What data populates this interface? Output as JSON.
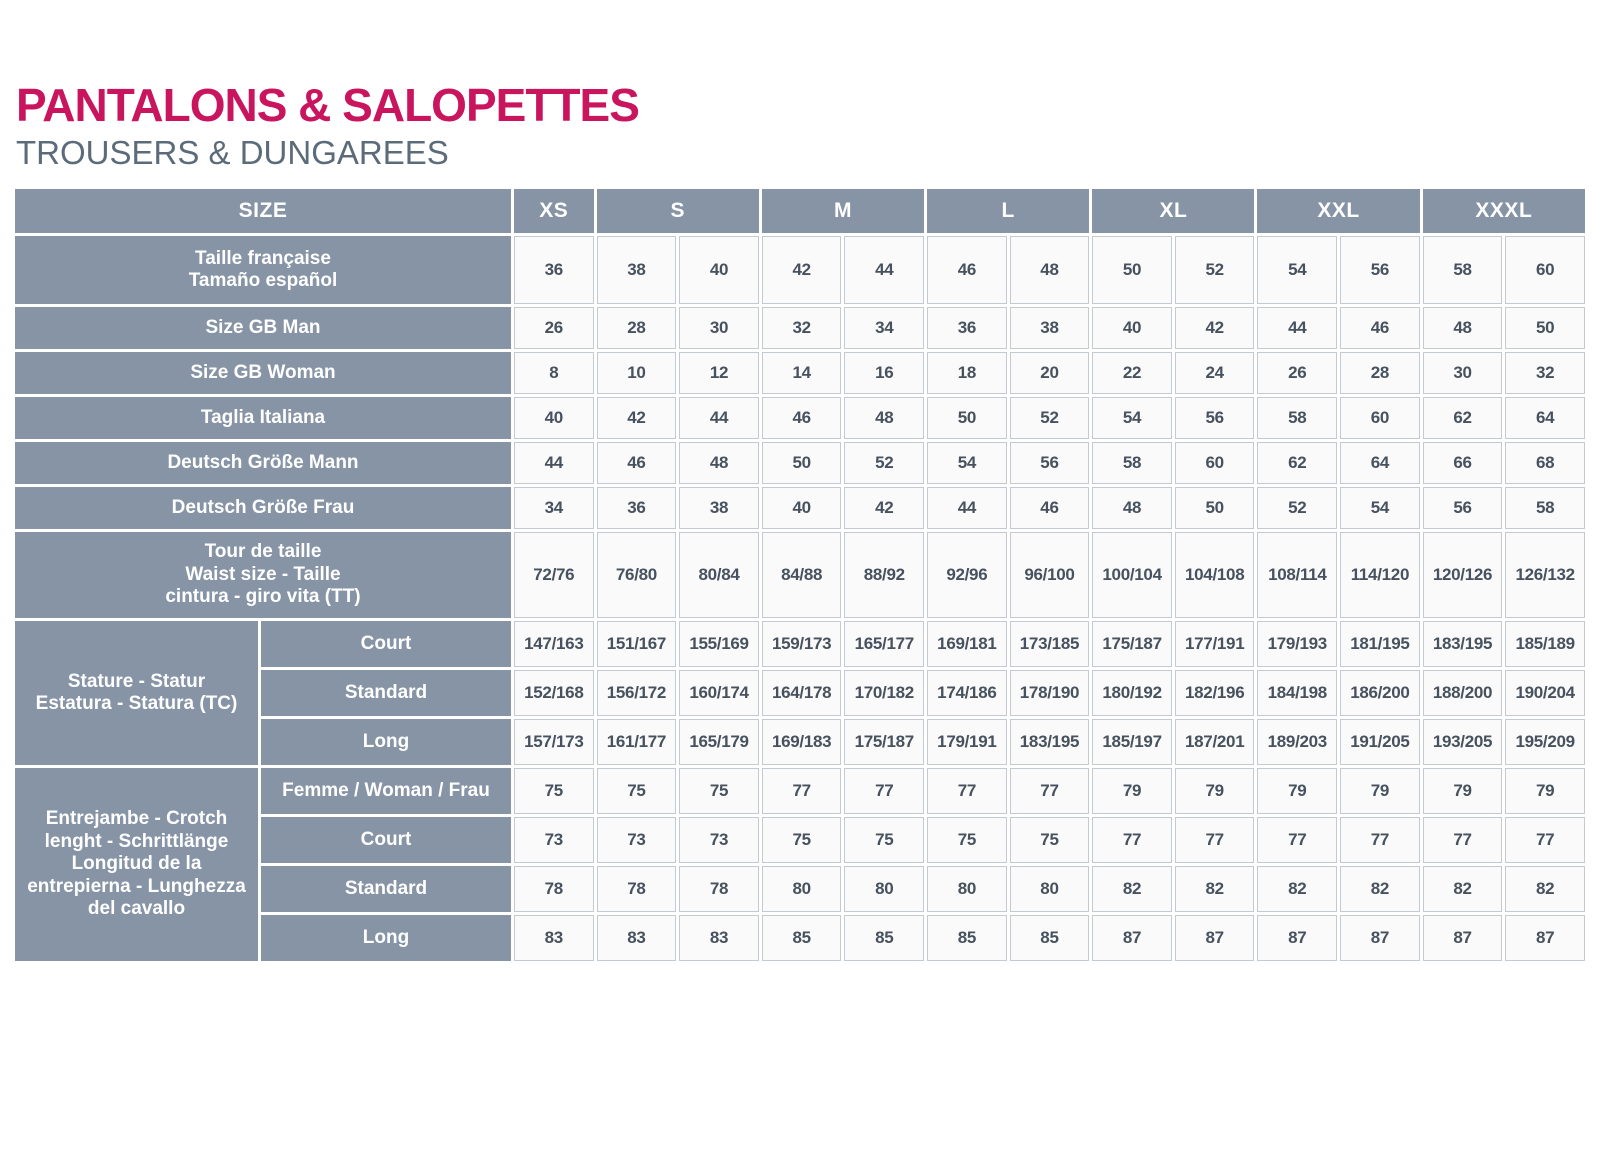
{
  "page": {
    "title": "PANTALONS & SALOPETTES",
    "subtitle": "TROUSERS & DUNGAREES"
  },
  "colors": {
    "accent": "#C8155E",
    "subtitle": "#5C6B7A",
    "label_bg": "#8694A6",
    "cell_bg": "#FAFAFB",
    "cell_border": "#C3CAD2",
    "cell_text": "#47525E"
  },
  "table": {
    "size_header": {
      "label": "SIZE",
      "groups": [
        {
          "label": "XS",
          "span": 1
        },
        {
          "label": "S",
          "span": 2
        },
        {
          "label": "M",
          "span": 2
        },
        {
          "label": "L",
          "span": 2
        },
        {
          "label": "XL",
          "span": 2
        },
        {
          "label": "XXL",
          "span": 2
        },
        {
          "label": "XXXL",
          "span": 2
        }
      ]
    },
    "simple_rows": [
      {
        "label": "Taille française\nTamaño español",
        "values": [
          "36",
          "38",
          "40",
          "42",
          "44",
          "46",
          "48",
          "50",
          "52",
          "54",
          "56",
          "58",
          "60"
        ]
      },
      {
        "label": "Size GB Man",
        "values": [
          "26",
          "28",
          "30",
          "32",
          "34",
          "36",
          "38",
          "40",
          "42",
          "44",
          "46",
          "48",
          "50"
        ]
      },
      {
        "label": "Size GB Woman",
        "values": [
          "8",
          "10",
          "12",
          "14",
          "16",
          "18",
          "20",
          "22",
          "24",
          "26",
          "28",
          "30",
          "32"
        ]
      },
      {
        "label": "Taglia Italiana",
        "values": [
          "40",
          "42",
          "44",
          "46",
          "48",
          "50",
          "52",
          "54",
          "56",
          "58",
          "60",
          "62",
          "64"
        ]
      },
      {
        "label": "Deutsch Größe Mann",
        "values": [
          "44",
          "46",
          "48",
          "50",
          "52",
          "54",
          "56",
          "58",
          "60",
          "62",
          "64",
          "66",
          "68"
        ]
      },
      {
        "label": "Deutsch Größe Frau",
        "values": [
          "34",
          "36",
          "38",
          "40",
          "42",
          "44",
          "46",
          "48",
          "50",
          "52",
          "54",
          "56",
          "58"
        ]
      },
      {
        "label": "Tour de taille\nWaist size - Taille\ncintura - giro vita (TT)",
        "values": [
          "72/76",
          "76/80",
          "80/84",
          "84/88",
          "88/92",
          "92/96",
          "96/100",
          "100/104",
          "104/108",
          "108/114",
          "114/120",
          "120/126",
          "126/132"
        ]
      }
    ],
    "grouped_rows": [
      {
        "group_label": "Stature - Statur\nEstatura - Statura (TC)",
        "rows": [
          {
            "label": "Court",
            "values": [
              "147/163",
              "151/167",
              "155/169",
              "159/173",
              "165/177",
              "169/181",
              "173/185",
              "175/187",
              "177/191",
              "179/193",
              "181/195",
              "183/195",
              "185/189"
            ]
          },
          {
            "label": "Standard",
            "values": [
              "152/168",
              "156/172",
              "160/174",
              "164/178",
              "170/182",
              "174/186",
              "178/190",
              "180/192",
              "182/196",
              "184/198",
              "186/200",
              "188/200",
              "190/204"
            ]
          },
          {
            "label": "Long",
            "values": [
              "157/173",
              "161/177",
              "165/179",
              "169/183",
              "175/187",
              "179/191",
              "183/195",
              "185/197",
              "187/201",
              "189/203",
              "191/205",
              "193/205",
              "195/209"
            ]
          }
        ]
      },
      {
        "group_label": "Entrejambe - Crotch\nlenght - Schrittlänge\nLongitud de la\nentrepierna - Lunghezza\ndel cavallo",
        "rows": [
          {
            "label": "Femme / Woman / Frau",
            "values": [
              "75",
              "75",
              "75",
              "77",
              "77",
              "77",
              "77",
              "79",
              "79",
              "79",
              "79",
              "79",
              "79"
            ]
          },
          {
            "label": "Court",
            "values": [
              "73",
              "73",
              "73",
              "75",
              "75",
              "75",
              "75",
              "77",
              "77",
              "77",
              "77",
              "77",
              "77"
            ]
          },
          {
            "label": "Standard",
            "values": [
              "78",
              "78",
              "78",
              "80",
              "80",
              "80",
              "80",
              "82",
              "82",
              "82",
              "82",
              "82",
              "82"
            ]
          },
          {
            "label": "Long",
            "values": [
              "83",
              "83",
              "83",
              "85",
              "85",
              "85",
              "85",
              "87",
              "87",
              "87",
              "87",
              "87",
              "87"
            ]
          }
        ]
      }
    ]
  }
}
